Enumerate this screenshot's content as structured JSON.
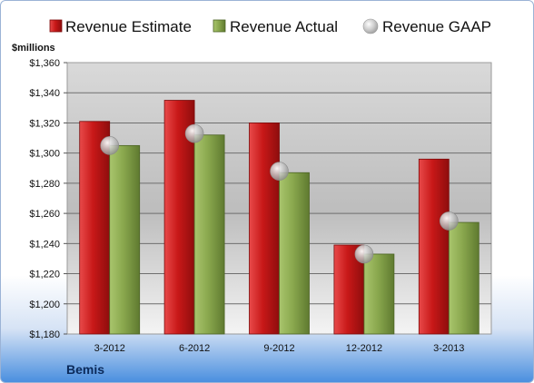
{
  "chart_data": {
    "type": "bar",
    "unit_label": "$millions",
    "company": "Bemis",
    "categories": [
      "3-2012",
      "6-2012",
      "9-2012",
      "12-2012",
      "3-2013"
    ],
    "series": [
      {
        "name": "Revenue Estimate",
        "kind": "bar",
        "color": "#cc1f1f",
        "values": [
          1321,
          1335,
          1320,
          1239,
          1296
        ]
      },
      {
        "name": "Revenue Actual",
        "kind": "bar",
        "color": "#8fae54",
        "values": [
          1305,
          1312,
          1287,
          1233,
          1254
        ]
      },
      {
        "name": "Revenue GAAP",
        "kind": "marker",
        "color": "#b8b8b8",
        "values": [
          1305,
          1313,
          1288,
          1233,
          1255
        ]
      }
    ],
    "yticks": [
      "$1,180",
      "$1,200",
      "$1,220",
      "$1,240",
      "$1,260",
      "$1,280",
      "$1,300",
      "$1,320",
      "$1,340",
      "$1,360"
    ],
    "ylim": [
      1180,
      1360
    ],
    "legend_position": "top",
    "grid": true
  }
}
